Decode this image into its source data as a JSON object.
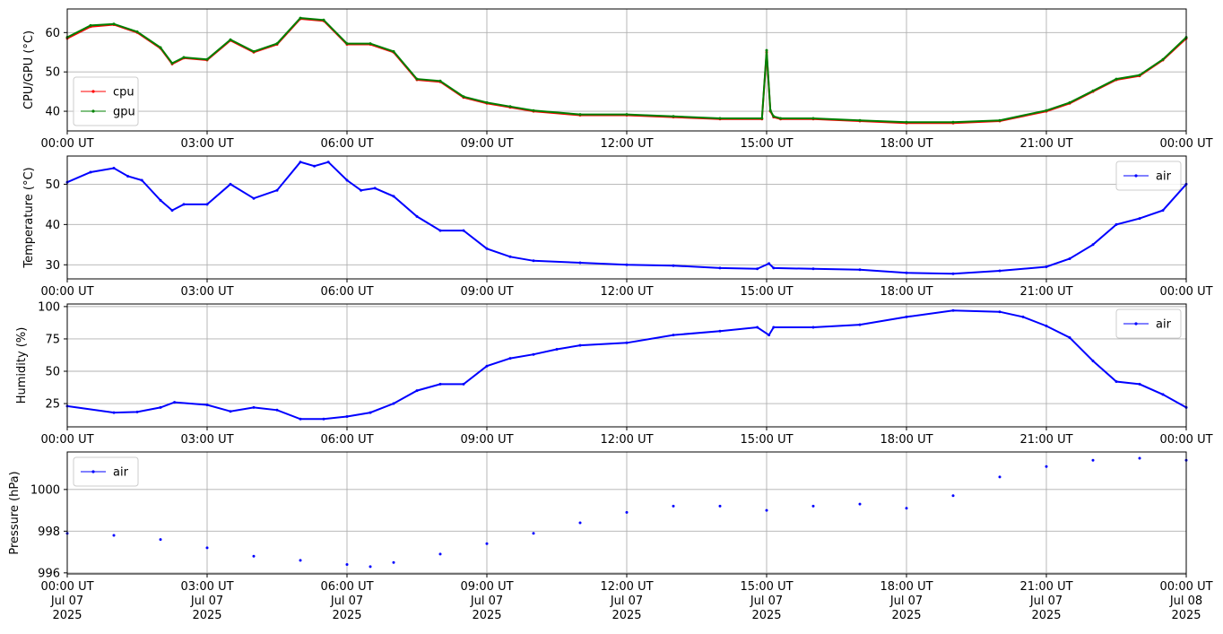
{
  "chart_data": [
    {
      "type": "line",
      "ylabel": "CPU/GPU (°C)",
      "ylim": [
        35,
        66
      ],
      "yticks": [
        40,
        50,
        60
      ],
      "legend": "lower-left",
      "grid": true,
      "x_ticks": [
        "00:00 UT",
        "03:00 UT",
        "06:00 UT",
        "09:00 UT",
        "12:00 UT",
        "15:00 UT",
        "18:00 UT",
        "21:00 UT",
        "00:00 UT"
      ],
      "x_hours": [
        0,
        0.5,
        1,
        1.5,
        2,
        2.25,
        2.5,
        3,
        3.5,
        4,
        4.5,
        5,
        5.5,
        6,
        6.5,
        7,
        7.5,
        8,
        8.5,
        9,
        9.5,
        10,
        11,
        12,
        13,
        14,
        14.9,
        15.0,
        15.08,
        15.15,
        15.3,
        16,
        17,
        18,
        19,
        20,
        21,
        21.5,
        22,
        22.5,
        23,
        23.5,
        24
      ],
      "series": [
        {
          "name": "cpu",
          "color": "#ff0000",
          "values": [
            58.5,
            61.5,
            62,
            60,
            56,
            52,
            53.5,
            53,
            58,
            55,
            57,
            63.5,
            63,
            57,
            57,
            55,
            48,
            47.5,
            43.5,
            42,
            41,
            40,
            39,
            39,
            38.5,
            38,
            38,
            55,
            40,
            38.5,
            38,
            38,
            37.5,
            37,
            37,
            37.5,
            40,
            42,
            45,
            48,
            49,
            53,
            58.5
          ]
        },
        {
          "name": "gpu",
          "color": "#008000",
          "values": [
            58.8,
            61.8,
            62.2,
            60.2,
            56.2,
            52.2,
            53.7,
            53.2,
            58.2,
            55.2,
            57.2,
            63.7,
            63.2,
            57.2,
            57.2,
            55.2,
            48.2,
            47.7,
            43.7,
            42.2,
            41.2,
            40.2,
            39.2,
            39.2,
            38.7,
            38.2,
            38.2,
            55.5,
            40.2,
            38.7,
            38.2,
            38.2,
            37.7,
            37.2,
            37.2,
            37.7,
            40.2,
            42.2,
            45.2,
            48.2,
            49.2,
            53.2,
            58.8
          ]
        }
      ]
    },
    {
      "type": "line",
      "ylabel": "Temperature (°C)",
      "ylim": [
        26.5,
        57
      ],
      "yticks": [
        30,
        40,
        50
      ],
      "legend": "top-right",
      "grid": true,
      "x_ticks": [
        "00:00 UT",
        "03:00 UT",
        "06:00 UT",
        "09:00 UT",
        "12:00 UT",
        "15:00 UT",
        "18:00 UT",
        "21:00 UT",
        "00:00 UT"
      ],
      "x_hours": [
        0,
        0.5,
        1,
        1.3,
        1.6,
        2,
        2.25,
        2.5,
        3,
        3.5,
        4,
        4.5,
        5,
        5.3,
        5.6,
        6,
        6.3,
        6.6,
        7,
        7.5,
        8,
        8.5,
        9,
        9.5,
        10,
        11,
        12,
        13,
        14,
        14.8,
        15.05,
        15.15,
        16,
        17,
        18,
        19,
        20,
        21,
        21.5,
        22,
        22.5,
        23,
        23.5,
        24
      ],
      "series": [
        {
          "name": "air",
          "color": "#0000ff",
          "values": [
            50.5,
            53,
            54,
            52,
            51,
            46,
            43.5,
            45,
            45,
            50,
            46.5,
            48.5,
            55.5,
            54.5,
            55.5,
            51,
            48.5,
            49,
            47,
            42,
            38.5,
            38.5,
            34,
            32,
            31,
            30.5,
            30,
            29.8,
            29.2,
            29,
            30.3,
            29.2,
            29,
            28.8,
            28,
            27.8,
            28.5,
            29.5,
            31.5,
            35,
            40,
            41.5,
            43.5,
            50
          ]
        }
      ]
    },
    {
      "type": "line",
      "ylabel": "Humidity (%)",
      "ylim": [
        7,
        102
      ],
      "yticks": [
        25,
        50,
        75,
        100
      ],
      "legend": "top-right",
      "grid": true,
      "x_ticks": [
        "00:00 UT",
        "03:00 UT",
        "06:00 UT",
        "09:00 UT",
        "12:00 UT",
        "15:00 UT",
        "18:00 UT",
        "21:00 UT",
        "00:00 UT"
      ],
      "x_hours": [
        0,
        1,
        1.5,
        2,
        2.3,
        3,
        3.5,
        4,
        4.5,
        5,
        5.5,
        6,
        6.5,
        7,
        7.5,
        8,
        8.5,
        9,
        9.5,
        10,
        10.5,
        11,
        12,
        13,
        14,
        14.8,
        15.05,
        15.15,
        16,
        17,
        18,
        19,
        20,
        20.5,
        21,
        21.5,
        22,
        22.5,
        23,
        23.5,
        24
      ],
      "series": [
        {
          "name": "air",
          "color": "#0000ff",
          "values": [
            23,
            18,
            18.5,
            22,
            26,
            24,
            19,
            22,
            20,
            13,
            13,
            15,
            18,
            25,
            35,
            40,
            40,
            54,
            60,
            63,
            67,
            70,
            72,
            78,
            81,
            84,
            78,
            84,
            84,
            86,
            92,
            97,
            96,
            92,
            85,
            76,
            58,
            42,
            40,
            32,
            22
          ]
        }
      ]
    },
    {
      "type": "scatter",
      "ylabel": "Pressure (hPa)",
      "ylim": [
        995.95,
        1001.8
      ],
      "yticks": [
        996,
        998,
        1000
      ],
      "legend": "top-left",
      "grid": true,
      "x_ticks": [
        "00:00 UT\nJul 07\n2025",
        "03:00 UT\nJul 07\n2025",
        "06:00 UT\nJul 07\n2025",
        "09:00 UT\nJul 07\n2025",
        "12:00 UT\nJul 07\n2025",
        "15:00 UT\nJul 07\n2025",
        "18:00 UT\nJul 07\n2025",
        "21:00 UT\nJul 07\n2025",
        "00:00 UT\nJul 08\n2025"
      ],
      "x_hours": [
        0,
        1,
        2,
        3,
        4,
        5,
        6,
        6.5,
        7,
        8,
        9,
        10,
        11,
        12,
        13,
        14,
        15,
        16,
        17,
        18,
        19,
        20,
        21,
        22,
        23,
        24
      ],
      "series": [
        {
          "name": "air",
          "color": "#0000ff",
          "values": [
            997.9,
            997.8,
            997.6,
            997.2,
            996.8,
            996.6,
            996.4,
            996.3,
            996.5,
            996.9,
            997.4,
            997.9,
            998.4,
            998.9,
            999.2,
            999.2,
            999.0,
            999.2,
            999.3,
            999.1,
            999.7,
            1000.6,
            1001.1,
            1001.4,
            1001.5,
            1001.4
          ]
        }
      ]
    }
  ]
}
